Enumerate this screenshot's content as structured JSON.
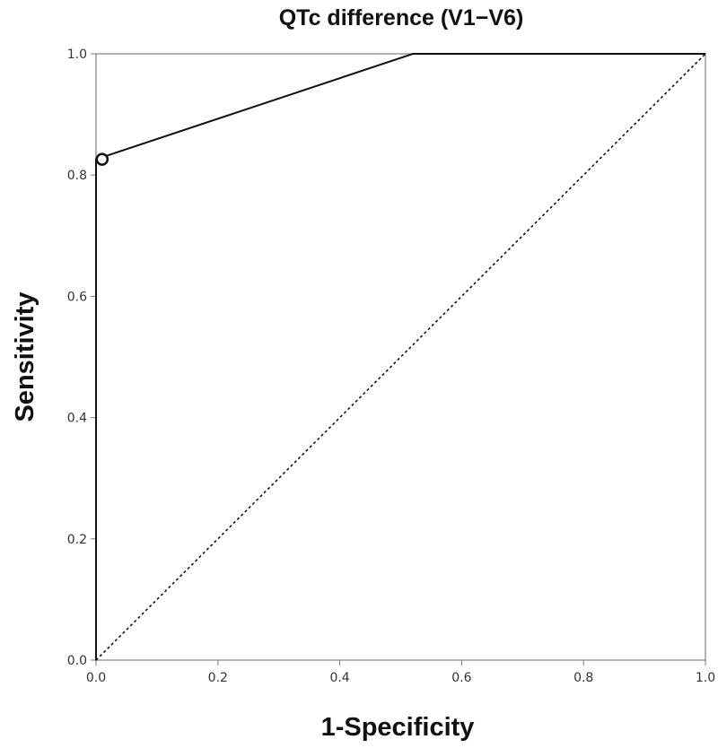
{
  "chart_data": {
    "type": "line",
    "title": "QTc difference (V1−V6)",
    "xlabel": "1-Specificity",
    "ylabel": "Sensitivity",
    "xlim": [
      0.0,
      1.0
    ],
    "ylim": [
      0.0,
      1.0
    ],
    "x_ticks": [
      "0.0",
      "0.2",
      "0.4",
      "0.6",
      "0.8",
      "1.0"
    ],
    "y_ticks": [
      "0.0",
      "0.2",
      "0.4",
      "0.6",
      "0.8",
      "1.0"
    ],
    "grid": false,
    "series": [
      {
        "style": "solid",
        "color": "#111111",
        "x": [
          0.0,
          0.0,
          0.52,
          1.0
        ],
        "y": [
          0.0,
          0.826,
          1.0,
          1.0
        ]
      },
      {
        "style": "dotted",
        "color": "#111111",
        "x": [
          0.0,
          1.0
        ],
        "y": [
          0.0,
          1.0
        ]
      }
    ],
    "markers": [
      {
        "shape": "open-circle",
        "x": 0.01,
        "y": 0.826
      }
    ]
  }
}
